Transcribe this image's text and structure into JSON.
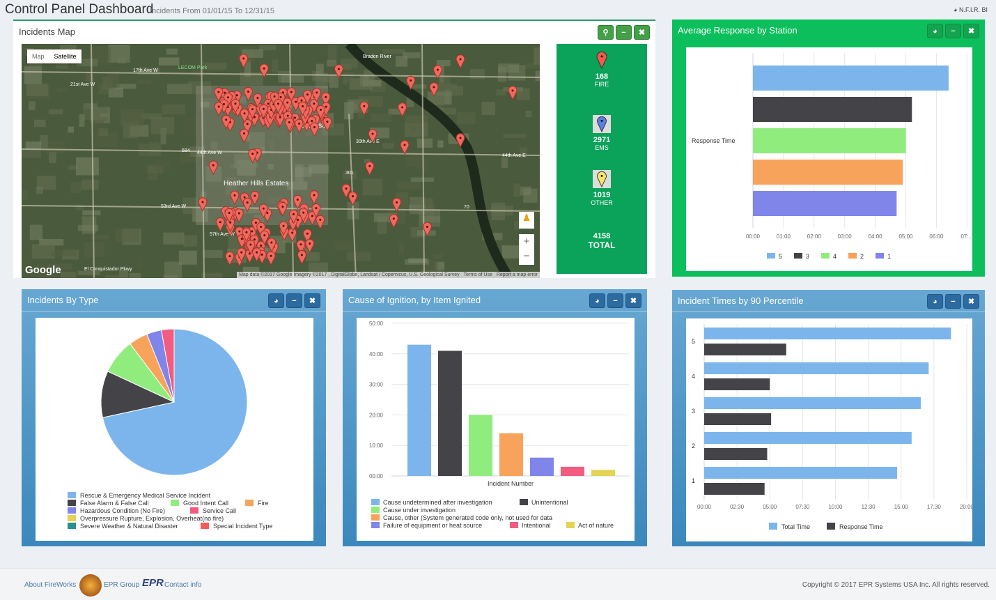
{
  "header": {
    "title": "Control Panel Dashboard",
    "subtitle": "Incidents From 01/01/15 To 12/31/15",
    "brand": "N.F.I.R. BI",
    "brand_icon": "dashboard-icon"
  },
  "map_panel": {
    "title": "Incidents Map",
    "buttons": {
      "locate": "map-marker-icon",
      "minimize": "minus-icon",
      "close": "close-icon"
    },
    "map": {
      "type_map": "Map",
      "type_satellite": "Satellite",
      "selected": "Satellite",
      "logo": "Google",
      "attribution": "Map data ©2017 Google Imagery ©2017 , DigitalGlobe, Landsat / Copernicus, U.S. Geological Survey",
      "terms": "Terms of Use",
      "report": "Report a map error",
      "zoom_in": "+",
      "zoom_out": "−",
      "labels": [
        "17th Ave W",
        "21st Ave W",
        "LECOM Park",
        "44th Ave W",
        "53rd Ave W",
        "57th Ave W",
        "Heather Hills Estates",
        "Samoset",
        "30th Ave E",
        "44th Ave E",
        "Braden River",
        "El Conquistador Pkwy",
        "684",
        "301",
        "70"
      ]
    },
    "stats": [
      {
        "value": "168",
        "label": "FIRE",
        "pin_color": "#f05a4f"
      },
      {
        "value": "2971",
        "label": "EMS",
        "pin_color": "#5b7fe0"
      },
      {
        "value": "1019",
        "label": "OTHER",
        "pin_color": "#f3e66a"
      }
    ],
    "total": {
      "value": "4158",
      "label": "TOTAL"
    }
  },
  "avg_panel": {
    "title": "Average Response by Station"
  },
  "type_panel": {
    "title": "Incidents By Type"
  },
  "cause_panel": {
    "title": "Cause of Ignition, by Item Ignited"
  },
  "pct_panel": {
    "title": "Incident Times by 90 Percentile"
  },
  "chart_data": [
    {
      "type": "bar",
      "orientation": "horizontal",
      "category_label": "Response Time",
      "xlim_minutes": [
        0,
        7
      ],
      "tick_labels": [
        "00:00",
        "01:00",
        "02:00",
        "03:00",
        "04:00",
        "05:00",
        "06:00",
        "07:..."
      ],
      "series": [
        {
          "name": "5",
          "value_minutes": 6.4,
          "color": "#7cb5ec"
        },
        {
          "name": "3",
          "value_minutes": 5.2,
          "color": "#434348"
        },
        {
          "name": "4",
          "value_minutes": 5.0,
          "color": "#90ed7d"
        },
        {
          "name": "2",
          "value_minutes": 4.9,
          "color": "#f7a35c"
        },
        {
          "name": "1",
          "value_minutes": 4.7,
          "color": "#8085e9"
        }
      ],
      "legend": "bottom",
      "grid": true
    },
    {
      "type": "pie",
      "legend": "bottom",
      "slices": [
        {
          "name": "Rescue & Emergency Medical Service Incident",
          "percent": 71.6,
          "color": "#7cb5ec"
        },
        {
          "name": "False Alarm & False Call",
          "percent": 10.3,
          "color": "#434348"
        },
        {
          "name": "Good Intent Call",
          "percent": 7.8,
          "color": "#90ed7d"
        },
        {
          "name": "Fire",
          "percent": 4.2,
          "color": "#f7a35c"
        },
        {
          "name": "Hazardous Condition (No Fire)",
          "percent": 3.3,
          "color": "#8085e9"
        },
        {
          "name": "Service Call",
          "percent": 2.8,
          "color": "#f15c80"
        },
        {
          "name": "Overpressure Rupture, Explosion, Overheat(no fire)",
          "percent": 0,
          "color": "#e4d354"
        },
        {
          "name": "Severe Weather & Natural Disaster",
          "percent": 0,
          "color": "#2b908f"
        },
        {
          "name": "Special Incident Type",
          "percent": 0,
          "color": "#f45b5b"
        }
      ]
    },
    {
      "type": "bar",
      "orientation": "vertical",
      "xlabel": "Incident Number",
      "ylim": [
        0,
        50
      ],
      "tick_labels": [
        "00:00",
        "10:00",
        "20:00",
        "30:00",
        "40:00",
        "50:00"
      ],
      "series": [
        {
          "name": "Cause undetermined after investigation",
          "value": 43,
          "color": "#7cb5ec"
        },
        {
          "name": "Unintentional",
          "value": 41,
          "color": "#434348"
        },
        {
          "name": "Cause under investigation",
          "value": 20,
          "color": "#90ed7d"
        },
        {
          "name": "Cause, other (System generated code only, not used for data",
          "value": 14,
          "color": "#f7a35c"
        },
        {
          "name": "Failure of equipment or heat source",
          "value": 6,
          "color": "#8085e9"
        },
        {
          "name": "Intentional",
          "value": 3,
          "color": "#f15c80"
        },
        {
          "name": "Act of nature",
          "value": 2,
          "color": "#e4d354"
        }
      ],
      "legend": "bottom",
      "grid": true
    },
    {
      "type": "bar",
      "orientation": "horizontal",
      "categories": [
        "5",
        "4",
        "3",
        "2",
        "1"
      ],
      "xlim_minutes": [
        0,
        20
      ],
      "tick_labels": [
        "00:00",
        "02:30",
        "05:00",
        "07:30",
        "10:00",
        "12:30",
        "15:00",
        "17:30",
        "20:00"
      ],
      "series": [
        {
          "name": "Total Time",
          "color": "#7cb5ec",
          "values_minutes": [
            18.8,
            17.1,
            16.5,
            15.8,
            14.7
          ]
        },
        {
          "name": "Response Time",
          "color": "#434348",
          "values_minutes": [
            6.25,
            5.0,
            5.1,
            4.8,
            4.6
          ]
        }
      ],
      "legend": "bottom",
      "grid": true
    }
  ],
  "footer": {
    "about": "About FireWorks",
    "epr_group": "EPR Group",
    "epr_logo": "EPR",
    "contact": "Contact info",
    "copyright": "Copyright © 2017 EPR Systems USA Inc. All rights reserved."
  }
}
